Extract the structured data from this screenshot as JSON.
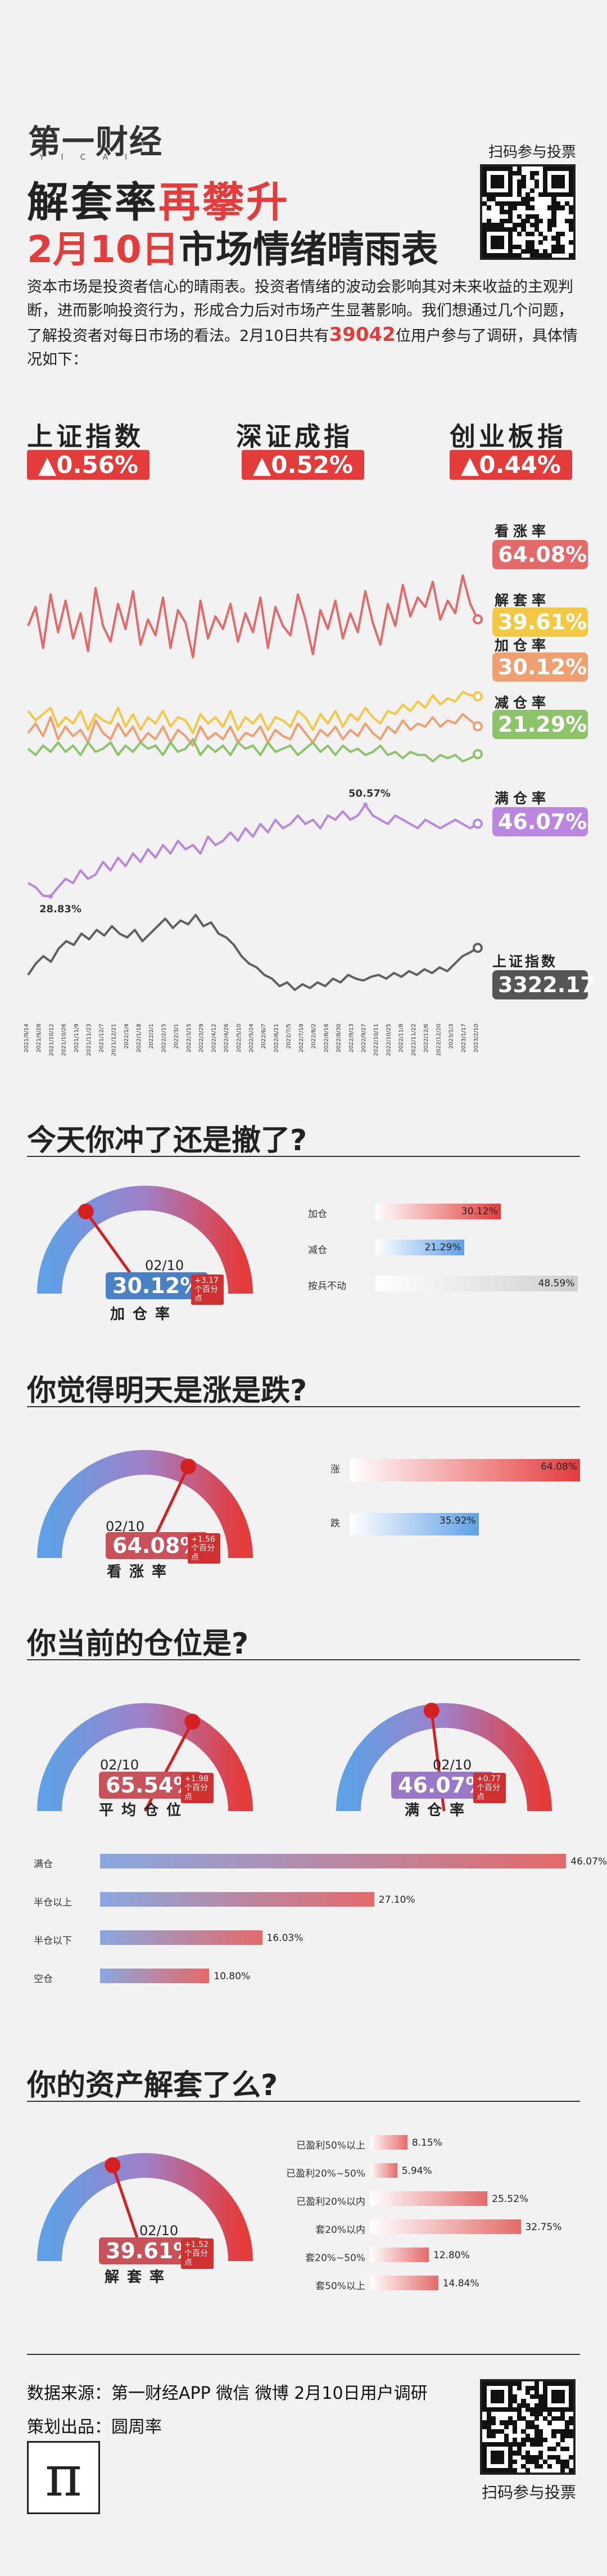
{
  "header": {
    "logo": "第一财经",
    "logo_sub": "YICAI",
    "title_line1_part1": "解套率",
    "title_line1_part2": "再攀升",
    "title_line2_part1": "2月10日",
    "title_line2_part2": "市场情绪晴雨表",
    "qr_label": "扫码参与投票"
  },
  "intro": {
    "text_before": "资本市场是投资者信心的晴雨表。投资者情绪的波动会影响其对未来收益的主观判断，进而影响投资行为，形成合力后对市场产生显著影响。我们想通过几个问题，了解投资者对每日市场的看法。2月10日共有",
    "count": "39042",
    "text_after": "位用户参与了调研，具体情况如下："
  },
  "indices": [
    {
      "name": "上证指数",
      "value": "▲0.56%"
    },
    {
      "name": "深证成指",
      "value": "▲0.52%"
    },
    {
      "name": "创业板指",
      "value": "▲0.44%"
    }
  ],
  "colors": {
    "red": "#e43b3b",
    "pink": "#e46a6a",
    "yellow": "#f5c843",
    "orange": "#f0a070",
    "green": "#8dc46a",
    "purple": "#b987e0",
    "blue": "#5fa0e6",
    "gray": "#606060"
  },
  "legend": {
    "up": {
      "label": "看涨率",
      "value": "64.08%"
    },
    "unlock": {
      "label": "解套率",
      "value": "39.61%"
    },
    "add": {
      "label": "加仓率",
      "value": "30.12%"
    },
    "reduce": {
      "label": "减仓率",
      "value": "21.29%"
    },
    "full": {
      "label": "满仓率",
      "value": "46.07%"
    },
    "sh": {
      "label": "上证指数",
      "value": "3322.17"
    }
  },
  "chart_data": {
    "type": "line",
    "series": [
      {
        "name": "看涨率",
        "values": [
          62,
          68,
          55,
          72,
          60,
          70,
          58,
          66,
          54,
          74,
          62,
          57,
          69,
          61,
          73,
          56,
          64,
          59,
          71,
          55,
          67,
          63,
          52,
          70,
          58,
          65,
          61,
          69,
          57,
          66,
          60,
          71,
          55,
          68,
          62,
          59,
          72,
          64,
          53,
          67,
          61,
          70,
          58,
          66,
          60,
          73,
          63,
          56,
          69,
          62,
          75,
          65,
          71,
          68,
          76,
          64,
          70,
          66,
          78,
          69,
          64.08
        ]
      },
      {
        "name": "解套率",
        "values": [
          35,
          32,
          34,
          36,
          30,
          33,
          31,
          35,
          29,
          34,
          32,
          31,
          36,
          30,
          34,
          29,
          33,
          31,
          35,
          30,
          33,
          32,
          28,
          34,
          31,
          33,
          30,
          35,
          29,
          33,
          31,
          34,
          29,
          33,
          32,
          30,
          35,
          33,
          29,
          34,
          31,
          35,
          30,
          34,
          32,
          36,
          33,
          31,
          35,
          34,
          37,
          35,
          38,
          36,
          40,
          37,
          39,
          38,
          41,
          40,
          39.61
        ]
      },
      {
        "name": "加仓率",
        "values": [
          28,
          31,
          27,
          33,
          26,
          30,
          27,
          29,
          25,
          32,
          28,
          26,
          31,
          27,
          30,
          25,
          28,
          26,
          30,
          25,
          29,
          27,
          24,
          30,
          26,
          28,
          26,
          30,
          25,
          28,
          27,
          30,
          25,
          29,
          27,
          26,
          31,
          28,
          25,
          29,
          27,
          30,
          26,
          29,
          27,
          31,
          28,
          26,
          30,
          28,
          32,
          29,
          31,
          30,
          33,
          30,
          32,
          31,
          34,
          32,
          30.12
        ]
      },
      {
        "name": "减仓率",
        "values": [
          23,
          21,
          24,
          22,
          25,
          22,
          24,
          21,
          25,
          22,
          23,
          25,
          21,
          24,
          22,
          25,
          23,
          24,
          21,
          25,
          22,
          23,
          26,
          21,
          24,
          22,
          24,
          21,
          25,
          23,
          24,
          21,
          25,
          22,
          23,
          24,
          21,
          23,
          25,
          22,
          24,
          21,
          24,
          22,
          23,
          21,
          22,
          24,
          21,
          22,
          20,
          22,
          21,
          21,
          19,
          21,
          20,
          21,
          19,
          20,
          21.29
        ]
      },
      {
        "name": "满仓率",
        "values": [
          32,
          31,
          29,
          28.83,
          31,
          33,
          32,
          35,
          33,
          34,
          37,
          35,
          38,
          36,
          39,
          37,
          40,
          38,
          41,
          39,
          42,
          40,
          41,
          39,
          43,
          41,
          42,
          44,
          42,
          45,
          43,
          46,
          44,
          47,
          45,
          46,
          48,
          46,
          47,
          45,
          48,
          47,
          49,
          47,
          48,
          50.57,
          48,
          47,
          46,
          48,
          47,
          46,
          45,
          47,
          46,
          45,
          46,
          47,
          46,
          45,
          46.07
        ]
      },
      {
        "name": "上证指数",
        "values": [
          3250,
          3280,
          3300,
          3285,
          3320,
          3340,
          3330,
          3360,
          3345,
          3370,
          3355,
          3380,
          3360,
          3350,
          3370,
          3340,
          3360,
          3380,
          3400,
          3375,
          3395,
          3385,
          3410,
          3380,
          3390,
          3360,
          3350,
          3330,
          3300,
          3280,
          3270,
          3250,
          3240,
          3220,
          3230,
          3210,
          3225,
          3215,
          3230,
          3220,
          3240,
          3230,
          3250,
          3240,
          3235,
          3245,
          3250,
          3240,
          3255,
          3245,
          3260,
          3250,
          3265,
          3255,
          3270,
          3260,
          3280,
          3300,
          3310,
          3322.17
        ]
      }
    ],
    "annotations": [
      {
        "text": "50.57%"
      },
      {
        "text": "28.83%"
      }
    ],
    "x_tick_labels": [
      "2021/9/14",
      "2021/9/28",
      "2021/10/12",
      "2021/10/26",
      "2021/11/9",
      "2021/11/23",
      "2021/12/7",
      "2021/12/21",
      "2022/1/4",
      "2022/1/18",
      "2022/2/1",
      "2022/2/15",
      "2022/3/1",
      "2022/3/15",
      "2022/3/29",
      "2022/4/12",
      "2022/4/26",
      "2022/5/10",
      "2022/5/24",
      "2022/6/7",
      "2022/6/21",
      "2022/7/5",
      "2022/7/19",
      "2022/8/2",
      "2022/8/16",
      "2022/8/30",
      "2022/9/13",
      "2022/9/27",
      "2022/10/11",
      "2022/10/25",
      "2022/11/8",
      "2022/11/22",
      "2022/12/6",
      "2022/12/20",
      "2023/1/3",
      "2023/1/17",
      "2023/2/10"
    ]
  },
  "q1": {
    "title": "今天你冲了还是撤了?",
    "gauge": {
      "date": "02/10",
      "pct": "30.12%",
      "value": 0.3012,
      "change": "+3.17个百分点",
      "label": "加仓率"
    },
    "bars": [
      {
        "label": "加仓",
        "pct": "30.12%",
        "value": 0.3012,
        "color": "#e43b3b"
      },
      {
        "label": "减仓",
        "pct": "21.29%",
        "value": 0.2129,
        "color": "#5fa0e6"
      },
      {
        "label": "按兵不动",
        "pct": "48.59%",
        "value": 0.4859,
        "color": "#cfcfcf"
      }
    ]
  },
  "q2": {
    "title": "你觉得明天是涨是跌?",
    "gauge": {
      "date": "02/10",
      "pct": "64.08%",
      "value": 0.6408,
      "change": "+1.56个百分点",
      "label": "看涨率"
    },
    "bars": [
      {
        "label": "涨",
        "pct": "64.08%",
        "value": 0.6408,
        "color": "#e43b3b"
      },
      {
        "label": "跌",
        "pct": "35.92%",
        "value": 0.3592,
        "color": "#5fa0e6"
      }
    ]
  },
  "q3": {
    "title": "你当前的仓位是?",
    "gauge_left": {
      "date": "02/10",
      "pct": "65.54%",
      "value": 0.6554,
      "change": "+1.98个百分点",
      "label": "平均仓位"
    },
    "gauge_right": {
      "date": "02/10",
      "pct": "46.07%",
      "value": 0.4607,
      "change": "+0.77个百分点",
      "label": "满仓率"
    },
    "bars": [
      {
        "label": "满仓",
        "pct": "46.07%",
        "value": 0.4607
      },
      {
        "label": "半仓以上",
        "pct": "27.10%",
        "value": 0.271
      },
      {
        "label": "半仓以下",
        "pct": "16.03%",
        "value": 0.1603
      },
      {
        "label": "空仓",
        "pct": "10.80%",
        "value": 0.108
      }
    ]
  },
  "q4": {
    "title": "你的资产解套了么?",
    "gauge": {
      "date": "02/10",
      "pct": "39.61%",
      "value": 0.3961,
      "change": "+1.52个百分点",
      "label": "解套率"
    },
    "bars": [
      {
        "label": "已盈利50%以上",
        "pct": "8.15%",
        "value": 0.0815
      },
      {
        "label": "已盈利20%~50%",
        "pct": "5.94%",
        "value": 0.0594
      },
      {
        "label": "已盈利20%以内",
        "pct": "25.52%",
        "value": 0.2552
      },
      {
        "label": "套20%以内",
        "pct": "32.75%",
        "value": 0.3275
      },
      {
        "label": "套20%~50%",
        "pct": "12.80%",
        "value": 0.128
      },
      {
        "label": "套50%以上",
        "pct": "14.84%",
        "value": 0.1484
      }
    ]
  },
  "footer": {
    "source": "数据来源：第一财经APP 微信 微博 2月10日用户调研",
    "producer": "策划出品：圆周率",
    "qr_label": "扫码参与投票",
    "pi_logo": "π"
  }
}
